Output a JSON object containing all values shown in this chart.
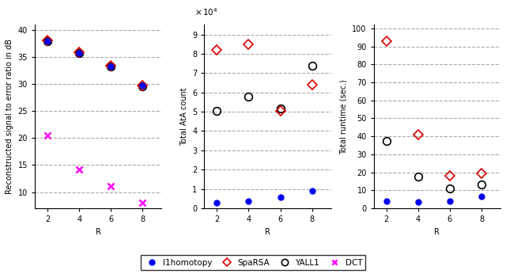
{
  "R": [
    2,
    4,
    6,
    8
  ],
  "plot1": {
    "ylabel": "Reconstructed signal to error ratio in dB",
    "xlabel": "R",
    "ylim": [
      7,
      41
    ],
    "yticks": [
      10,
      15,
      20,
      25,
      30,
      35,
      40
    ],
    "l1homotopy": [
      38.0,
      35.8,
      33.3,
      29.7
    ],
    "SpaRSA": [
      38.1,
      35.9,
      33.4,
      29.8
    ],
    "YALL1": [
      38.0,
      35.8,
      33.3,
      29.6
    ],
    "DCT": [
      20.5,
      14.2,
      11.1,
      8.0
    ]
  },
  "plot2": {
    "ylabel": "Total AtA count",
    "xlabel": "R",
    "ylim": [
      0,
      95000.0
    ],
    "yticks": [
      0,
      10000,
      20000,
      30000,
      40000,
      50000,
      60000,
      70000,
      80000,
      90000
    ],
    "yticklabels": [
      "0",
      "1",
      "2",
      "3",
      "4",
      "5",
      "6",
      "7",
      "8",
      "9"
    ],
    "l1homotopy": [
      2800,
      3700,
      5800,
      9000
    ],
    "SpaRSA": [
      82000,
      85000,
      50500,
      64000
    ],
    "YALL1": [
      50500,
      58000,
      51500,
      74000
    ]
  },
  "plot3": {
    "ylabel": "Total runtime (sec.)",
    "xlabel": "R",
    "ylim": [
      0,
      102
    ],
    "yticks": [
      0,
      10,
      20,
      30,
      40,
      50,
      60,
      70,
      80,
      90,
      100
    ],
    "l1homotopy": [
      4.0,
      3.5,
      4.0,
      6.5
    ],
    "SpaRSA": [
      93.0,
      41.0,
      18.0,
      19.5
    ],
    "YALL1": [
      37.5,
      17.5,
      11.0,
      13.0
    ]
  },
  "colors": {
    "l1homotopy": "#0000ee",
    "SpaRSA": "#dd0000",
    "YALL1": "#000000",
    "DCT": "#ff00ff"
  },
  "figsize": [
    6.4,
    3.46
  ],
  "dpi": 100
}
